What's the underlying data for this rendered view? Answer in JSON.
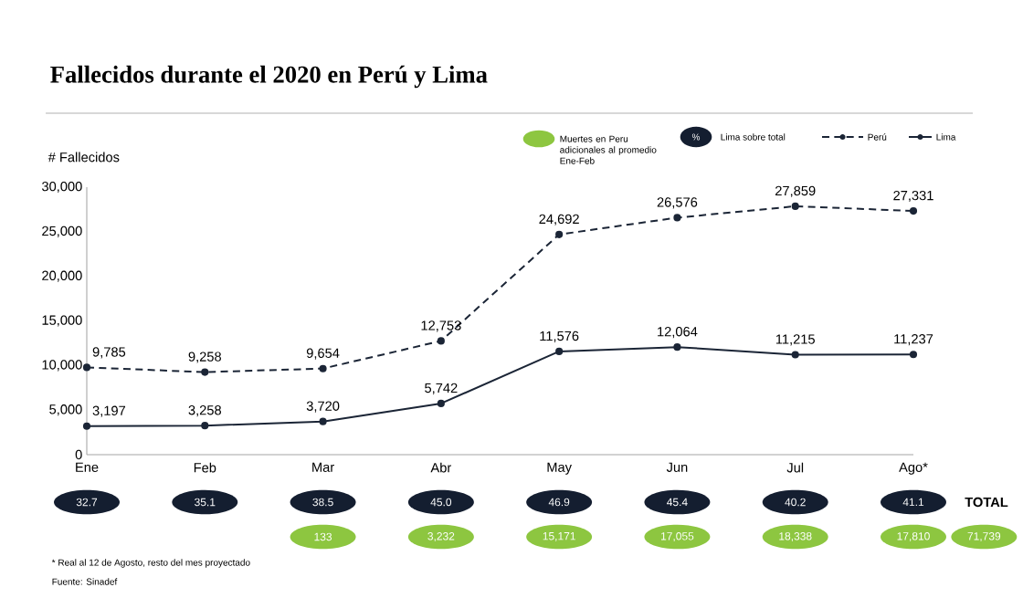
{
  "chart_data": {
    "type": "line",
    "title": "Fallecidos durante el 2020 en Perú y Lima",
    "ylabel": "# Fallecidos",
    "categories": [
      "Ene",
      "Feb",
      "Mar",
      "Abr",
      "May",
      "Jun",
      "Jul",
      "Ago*"
    ],
    "series": [
      {
        "name": "Perú",
        "color": "#1b2536",
        "line_style": "dashed",
        "values": [
          9785,
          9258,
          9654,
          12753,
          24692,
          26576,
          27859,
          27331
        ],
        "value_labels": [
          "9,785",
          "9,258",
          "9,654",
          "12,753",
          "24,692",
          "26,576",
          "27,859",
          "27,331"
        ]
      },
      {
        "name": "Lima",
        "color": "#1b2536",
        "line_style": "solid",
        "values": [
          3197,
          3258,
          3720,
          5742,
          11576,
          12064,
          11215,
          11237
        ],
        "value_labels": [
          "3,197",
          "3,258",
          "3,720",
          "5,742",
          "11,576",
          "12,064",
          "11,215",
          "11,237"
        ]
      }
    ],
    "ylim": [
      0,
      30000
    ],
    "yticks": [
      0,
      {
        "value": 5000,
        "label": "5,000"
      },
      {
        "value": 10000,
        "label": "10,000"
      },
      {
        "value": 15000,
        "label": "15,000"
      },
      {
        "value": 20000,
        "label": "20,000"
      },
      {
        "value": 25000,
        "label": "25,000"
      },
      {
        "value": 30000,
        "label": "30,000"
      }
    ],
    "marker": "circle",
    "legend": "top right",
    "annotations": [
      "Muertes en Peru adicionales al promedio Ene-Feb",
      "%",
      "Lima sobre total",
      "TOTAL",
      "32.7",
      "35.1",
      "38.5",
      "45.0",
      "46.9",
      "45.4",
      "40.2",
      "41.1",
      "133",
      "3,232",
      "15,171",
      "17,055",
      "18,338",
      "17,810",
      "71,739",
      "* Real al 12 de Agosto, resto del mes proyectado",
      "Fuente: Sinadef"
    ]
  }
}
